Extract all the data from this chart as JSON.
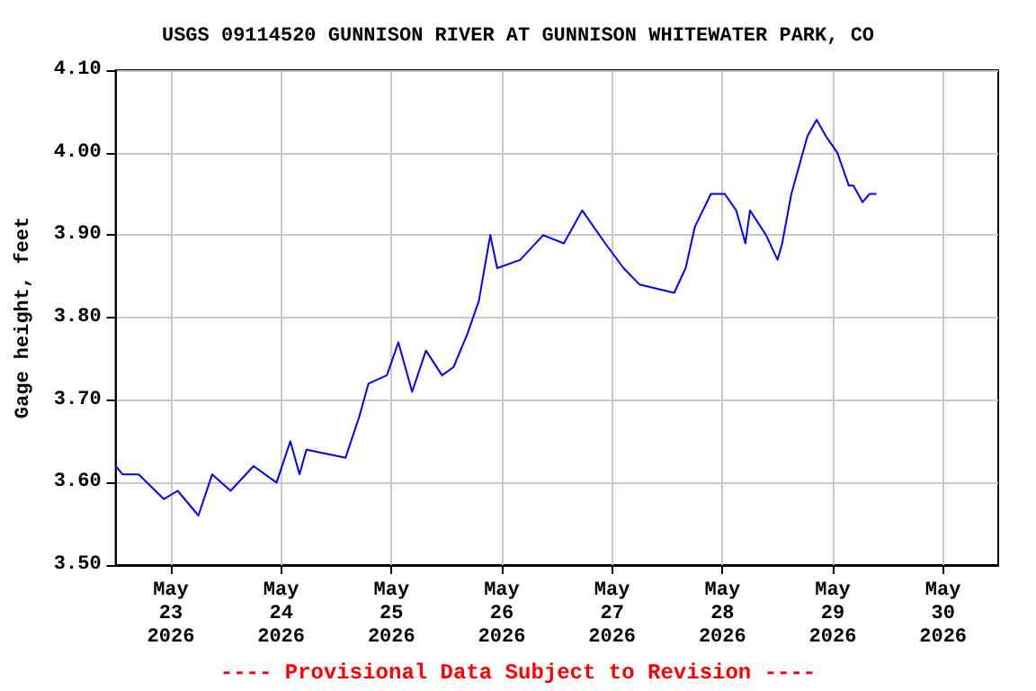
{
  "chart_data": {
    "type": "line",
    "title": "USGS 09114520 GUNNISON RIVER AT GUNNISON WHITEWATER PARK, CO",
    "ylabel": "Gage height, feet",
    "annotations": [
      "---- Provisional Data Subject to Revision ----"
    ],
    "x": [
      "2026-05-22T12:00",
      "2026-05-22T13:30",
      "2026-05-22T17:00",
      "2026-05-22T22:30",
      "2026-05-23T01:30",
      "2026-05-23T06:00",
      "2026-05-23T09:00",
      "2026-05-23T13:00",
      "2026-05-23T18:00",
      "2026-05-23T23:00",
      "2026-05-24T02:00",
      "2026-05-24T04:00",
      "2026-05-24T05:30",
      "2026-05-24T14:00",
      "2026-05-24T17:00",
      "2026-05-24T19:00",
      "2026-05-24T23:00",
      "2026-05-25T01:30",
      "2026-05-25T04:30",
      "2026-05-25T07:30",
      "2026-05-25T11:00",
      "2026-05-25T13:30",
      "2026-05-25T16:30",
      "2026-05-25T19:00",
      "2026-05-25T21:30",
      "2026-05-25T23:00",
      "2026-05-26T04:00",
      "2026-05-26T09:00",
      "2026-05-26T13:30",
      "2026-05-26T17:30",
      "2026-05-26T22:30",
      "2026-05-27T02:30",
      "2026-05-27T06:00",
      "2026-05-27T13:30",
      "2026-05-27T16:00",
      "2026-05-27T18:00",
      "2026-05-27T21:30",
      "2026-05-28T00:30",
      "2026-05-28T03:00",
      "2026-05-28T05:00",
      "2026-05-28T06:00",
      "2026-05-28T09:30",
      "2026-05-28T12:00",
      "2026-05-28T13:00",
      "2026-05-28T15:00",
      "2026-05-28T18:30",
      "2026-05-28T20:30",
      "2026-05-28T22:30",
      "2026-05-29T01:00",
      "2026-05-29T03:30",
      "2026-05-29T04:30",
      "2026-05-29T06:30",
      "2026-05-29T08:00",
      "2026-05-29T09:30"
    ],
    "series": [
      {
        "color": "#0000ff",
        "values": [
          3.62,
          3.61,
          3.61,
          3.58,
          3.59,
          3.56,
          3.61,
          3.59,
          3.62,
          3.6,
          3.65,
          3.61,
          3.64,
          3.63,
          3.68,
          3.72,
          3.73,
          3.77,
          3.71,
          3.76,
          3.73,
          3.74,
          3.78,
          3.82,
          3.9,
          3.86,
          3.87,
          3.9,
          3.89,
          3.93,
          3.89,
          3.86,
          3.84,
          3.83,
          3.86,
          3.91,
          3.95,
          3.95,
          3.93,
          3.89,
          3.93,
          3.9,
          3.87,
          3.89,
          3.95,
          4.02,
          4.04,
          4.02,
          4.0,
          3.96,
          3.96,
          3.94,
          3.95,
          3.95
        ]
      }
    ],
    "xlim": [
      "2026-05-22T12:00",
      "2026-05-30T12:00"
    ],
    "xticks": [
      {
        "value": "2026-05-23T00:00",
        "label": "May\n23\n2026"
      },
      {
        "value": "2026-05-24T00:00",
        "label": "May\n24\n2026"
      },
      {
        "value": "2026-05-25T00:00",
        "label": "May\n25\n2026"
      },
      {
        "value": "2026-05-26T00:00",
        "label": "May\n26\n2026"
      },
      {
        "value": "2026-05-27T00:00",
        "label": "May\n27\n2026"
      },
      {
        "value": "2026-05-28T00:00",
        "label": "May\n28\n2026"
      },
      {
        "value": "2026-05-29T00:00",
        "label": "May\n29\n2026"
      },
      {
        "value": "2026-05-30T00:00",
        "label": "May\n30\n2026"
      }
    ],
    "ylim": [
      3.5,
      4.1
    ],
    "yticks": [
      {
        "value": 3.5,
        "label": "3.50"
      },
      {
        "value": 3.6,
        "label": "3.60"
      },
      {
        "value": 3.7,
        "label": "3.70"
      },
      {
        "value": 3.8,
        "label": "3.80"
      },
      {
        "value": 3.9,
        "label": "3.90"
      },
      {
        "value": 4.0,
        "label": "4.00"
      },
      {
        "value": 4.1,
        "label": "4.10"
      }
    ],
    "grid": true,
    "marker": "none",
    "line_style": "solid"
  }
}
